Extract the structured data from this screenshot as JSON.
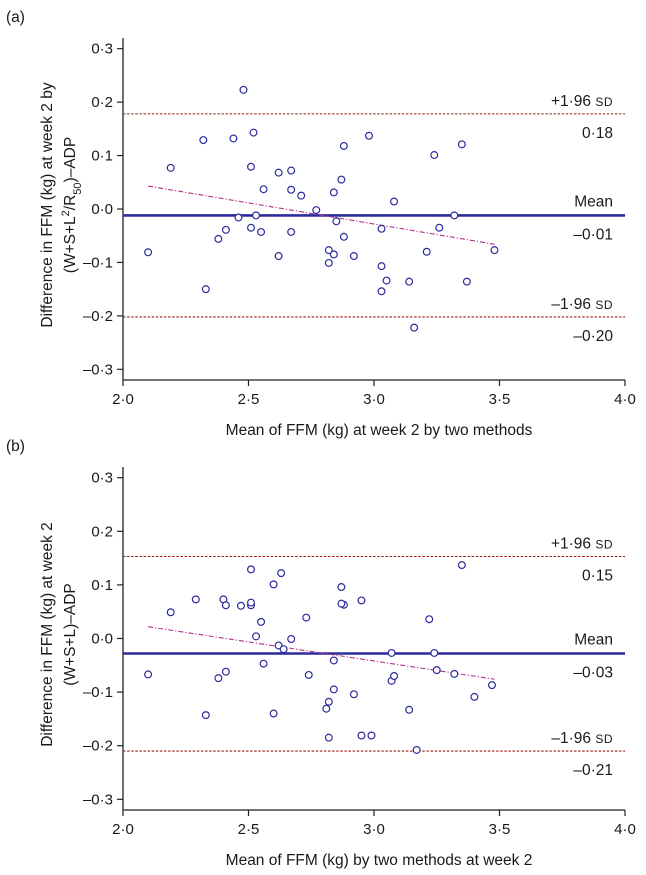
{
  "chart_data": [
    {
      "type": "scatter",
      "panel_label": "(a)",
      "xlabel": "Mean of FFM (kg) at week 2 by two methods",
      "ylabel_line1": "Difference in FFM (kg) at week 2 by",
      "ylabel_line2_pre": "(W+S+L",
      "ylabel_line2_sup": "2",
      "ylabel_line2_mid": "/R",
      "ylabel_line2_sub": "50",
      "ylabel_line2_post": ")–ADP",
      "xlim": [
        2.0,
        4.0
      ],
      "ylim": [
        -0.32,
        0.32
      ],
      "x_ticks": [
        "2·0",
        "2·5",
        "3·0",
        "3·5",
        "4·0"
      ],
      "x_tick_values": [
        2.0,
        2.5,
        3.0,
        3.5,
        4.0
      ],
      "y_ticks": [
        "0·3",
        "0·2",
        "0·1",
        "0·0",
        "–0·1",
        "–0·2",
        "–0·3"
      ],
      "y_tick_values": [
        0.3,
        0.2,
        0.1,
        0.0,
        -0.1,
        -0.2,
        -0.3
      ],
      "mean_line": {
        "value": -0.012,
        "label": "Mean",
        "value_label": "–0·01",
        "color": "#2b2b9c"
      },
      "upper_loa": {
        "value": 0.178,
        "label_main": "+1·96",
        "label_sd": "SD",
        "value_label": "0·18",
        "color": "#9b1c1c"
      },
      "lower_loa": {
        "value": -0.202,
        "label_main": "–1·96",
        "label_sd": "SD",
        "value_label": "–0·20",
        "color": "#9b1c1c"
      },
      "trend_line": {
        "x": [
          2.1,
          3.48
        ],
        "y": [
          0.043,
          -0.066
        ],
        "color": "#b0308a"
      },
      "points": [
        [
          2.1,
          -0.081
        ],
        [
          2.19,
          0.077
        ],
        [
          2.32,
          0.129
        ],
        [
          2.33,
          -0.15
        ],
        [
          2.38,
          -0.056
        ],
        [
          2.41,
          -0.039
        ],
        [
          2.44,
          0.132
        ],
        [
          2.46,
          -0.016
        ],
        [
          2.48,
          0.223
        ],
        [
          2.51,
          0.079
        ],
        [
          2.52,
          0.143
        ],
        [
          2.51,
          -0.035
        ],
        [
          2.53,
          -0.012
        ],
        [
          2.56,
          0.037
        ],
        [
          2.55,
          -0.043
        ],
        [
          2.62,
          0.068
        ],
        [
          2.62,
          -0.088
        ],
        [
          2.67,
          0.072
        ],
        [
          2.67,
          0.036
        ],
        [
          2.67,
          -0.043
        ],
        [
          2.71,
          0.025
        ],
        [
          2.77,
          -0.002
        ],
        [
          2.82,
          -0.077
        ],
        [
          2.82,
          -0.101
        ],
        [
          2.84,
          -0.085
        ],
        [
          2.84,
          0.031
        ],
        [
          2.85,
          -0.023
        ],
        [
          2.87,
          0.055
        ],
        [
          2.88,
          0.118
        ],
        [
          2.88,
          -0.052
        ],
        [
          2.92,
          -0.088
        ],
        [
          2.98,
          0.137
        ],
        [
          3.03,
          -0.037
        ],
        [
          3.03,
          -0.107
        ],
        [
          3.03,
          -0.154
        ],
        [
          3.05,
          -0.134
        ],
        [
          3.08,
          0.014
        ],
        [
          3.14,
          -0.136
        ],
        [
          3.16,
          -0.222
        ],
        [
          3.21,
          -0.08
        ],
        [
          3.24,
          0.101
        ],
        [
          3.26,
          -0.035
        ],
        [
          3.32,
          -0.012
        ],
        [
          3.35,
          0.121
        ],
        [
          3.37,
          -0.136
        ],
        [
          3.48,
          -0.077
        ]
      ]
    },
    {
      "type": "scatter",
      "panel_label": "(b)",
      "xlabel": "Mean of FFM (kg) by two methods at week 2",
      "ylabel_line1": "Difference in FFM (kg) at week 2",
      "ylabel_line2_pre": "(W+S+L)–ADP",
      "ylabel_line2_sup": "",
      "ylabel_line2_mid": "",
      "ylabel_line2_sub": "",
      "ylabel_line2_post": "",
      "xlim": [
        2.0,
        4.0
      ],
      "ylim": [
        -0.32,
        0.32
      ],
      "x_ticks": [
        "2·0",
        "2·5",
        "3·0",
        "3·5",
        "4·0"
      ],
      "x_tick_values": [
        2.0,
        2.5,
        3.0,
        3.5,
        4.0
      ],
      "y_ticks": [
        "0·3",
        "0·2",
        "0·1",
        "0·0",
        "–0·1",
        "–0·2",
        "–0·3"
      ],
      "y_tick_values": [
        0.3,
        0.2,
        0.1,
        0.0,
        -0.1,
        -0.2,
        -0.3
      ],
      "mean_line": {
        "value": -0.028,
        "label": "Mean",
        "value_label": "–0·03",
        "color": "#2b2b9c"
      },
      "upper_loa": {
        "value": 0.153,
        "label_main": "+1·96",
        "label_sd": "SD",
        "value_label": "0·15",
        "color": "#9b1c1c"
      },
      "lower_loa": {
        "value": -0.21,
        "label_main": "–1·96",
        "label_sd": "SD",
        "value_label": "–0·21",
        "color": "#9b1c1c"
      },
      "trend_line": {
        "x": [
          2.1,
          3.48
        ],
        "y": [
          0.022,
          -0.076
        ],
        "color": "#b0308a"
      },
      "points": [
        [
          2.1,
          -0.067
        ],
        [
          2.19,
          0.049
        ],
        [
          2.29,
          0.073
        ],
        [
          2.33,
          -0.143
        ],
        [
          2.38,
          -0.074
        ],
        [
          2.4,
          0.073
        ],
        [
          2.41,
          0.062
        ],
        [
          2.41,
          -0.062
        ],
        [
          2.47,
          0.061
        ],
        [
          2.51,
          0.129
        ],
        [
          2.51,
          0.062
        ],
        [
          2.51,
          0.067
        ],
        [
          2.53,
          0.004
        ],
        [
          2.55,
          0.031
        ],
        [
          2.56,
          -0.047
        ],
        [
          2.6,
          0.101
        ],
        [
          2.6,
          -0.14
        ],
        [
          2.63,
          0.122
        ],
        [
          2.62,
          -0.013
        ],
        [
          2.64,
          -0.02
        ],
        [
          2.67,
          -0.001
        ],
        [
          2.73,
          0.039
        ],
        [
          2.74,
          -0.068
        ],
        [
          2.81,
          -0.131
        ],
        [
          2.82,
          -0.118
        ],
        [
          2.82,
          -0.185
        ],
        [
          2.84,
          -0.041
        ],
        [
          2.84,
          -0.095
        ],
        [
          2.87,
          0.096
        ],
        [
          2.88,
          0.063
        ],
        [
          2.87,
          0.065
        ],
        [
          2.92,
          -0.104
        ],
        [
          2.95,
          0.071
        ],
        [
          2.95,
          -0.181
        ],
        [
          2.99,
          -0.181
        ],
        [
          3.07,
          -0.027
        ],
        [
          3.07,
          -0.079
        ],
        [
          3.08,
          -0.07
        ],
        [
          3.14,
          -0.133
        ],
        [
          3.17,
          -0.208
        ],
        [
          3.22,
          0.036
        ],
        [
          3.24,
          -0.027
        ],
        [
          3.25,
          -0.059
        ],
        [
          3.32,
          -0.066
        ],
        [
          3.35,
          0.137
        ],
        [
          3.4,
          -0.109
        ],
        [
          3.47,
          -0.087
        ]
      ]
    }
  ]
}
